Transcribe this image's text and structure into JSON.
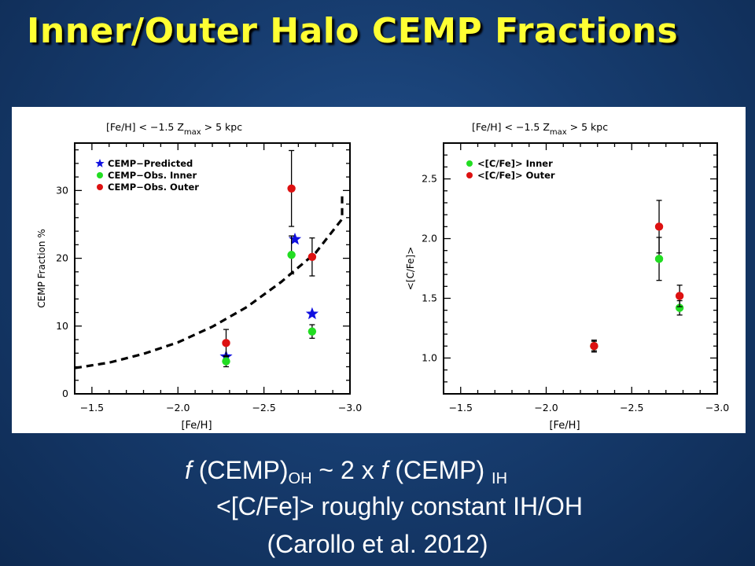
{
  "title": "Inner/Outer Halo CEMP Fractions",
  "caption": {
    "line1": {
      "f1": "f",
      "t1": " (CEMP)",
      "s1": "OH",
      "t2": " ~ 2 x ",
      "f2": "f",
      "t3": " (CEMP) ",
      "s2": "IH"
    },
    "line2": "<[C/Fe]> roughly constant IH/OH",
    "line3": "(Carollo et al. 2012)"
  },
  "colors": {
    "predicted": "#1010e0",
    "inner": "#22dd22",
    "outer": "#dd1111",
    "title": "#ffff33"
  },
  "chart_data": [
    {
      "type": "scatter",
      "header": "[Fe/H] < −1.5 Z_max > 5 kpc",
      "header_parts": {
        "feh": "[Fe/H] < −1.5",
        "z": "Z",
        "zsub": "max",
        "zrest": " > 5 kpc"
      },
      "xlabel": "[Fe/H]",
      "ylabel": "CEMP Fraction %",
      "xlim": [
        -1.4,
        -3.0
      ],
      "ylim": [
        0,
        37
      ],
      "xticks": [
        -1.5,
        -2.0,
        -2.5,
        -3.0
      ],
      "xtick_labels": [
        "−1.5",
        "−2.0",
        "−2.5",
        "−3.0"
      ],
      "yticks": [
        0,
        10,
        20,
        30
      ],
      "ytick_labels": [
        "0",
        "10",
        "20",
        "30"
      ],
      "legend_position": "top-left",
      "series": [
        {
          "name": "CEMP−Predicted",
          "marker": "star",
          "color": "#1010e0",
          "x": [
            -2.28,
            -2.78,
            -2.68
          ],
          "y": [
            5.5,
            11.8,
            22.8
          ],
          "y_alt": true
        },
        {
          "name": "CEMP−Obs. Inner",
          "marker": "circle",
          "color": "#22dd22",
          "x": [
            -2.28,
            -2.78,
            -2.66
          ],
          "y": [
            4.8,
            9.2,
            20.5
          ],
          "err": [
            0.8,
            1.0,
            2.8
          ]
        },
        {
          "name": "CEMP−Obs. Outer",
          "marker": "circle",
          "color": "#dd1111",
          "x": [
            -2.28,
            -2.78,
            -2.66
          ],
          "y": [
            7.5,
            20.2,
            30.3
          ],
          "err": [
            2.0,
            2.8,
            5.6
          ]
        }
      ],
      "curve": {
        "style": "dashed",
        "x": [
          -1.4,
          -1.6,
          -1.8,
          -2.0,
          -2.2,
          -2.4,
          -2.6,
          -2.8,
          -3.0,
          -3.05
        ],
        "y": [
          3.8,
          4.6,
          5.9,
          7.6,
          9.9,
          12.8,
          16.5,
          20.8,
          25.8,
          29.8
        ]
      }
    },
    {
      "type": "scatter",
      "header": "[Fe/H] < −1.5 Z_max > 5 kpc",
      "header_parts": {
        "feh": "[Fe/H] < −1.5",
        "z": "Z",
        "zsub": "max",
        "zrest": " > 5 kpc"
      },
      "xlabel": "[Fe/H]",
      "ylabel": "<[C/Fe]>",
      "xlim": [
        -1.4,
        -3.0
      ],
      "ylim": [
        0.7,
        2.8
      ],
      "xticks": [
        -1.5,
        -2.0,
        -2.5,
        -3.0
      ],
      "xtick_labels": [
        "−1.5",
        "−2.0",
        "−2.5",
        "−3.0"
      ],
      "yticks": [
        1.0,
        1.5,
        2.0,
        2.5
      ],
      "ytick_labels": [
        "1.0",
        "1.5",
        "2.0",
        "2.5"
      ],
      "legend_position": "top-left",
      "series": [
        {
          "name": "<[C/Fe]> Inner",
          "marker": "circle",
          "color": "#22dd22",
          "x": [
            -2.28,
            -2.78,
            -2.66
          ],
          "y": [
            1.1,
            1.42,
            1.83
          ],
          "err": [
            0.04,
            0.06,
            0.18
          ]
        },
        {
          "name": "<[C/Fe]> Outer",
          "marker": "circle",
          "color": "#dd1111",
          "x": [
            -2.28,
            -2.78,
            -2.66
          ],
          "y": [
            1.1,
            1.52,
            2.1
          ],
          "err": [
            0.05,
            0.09,
            0.22
          ]
        }
      ]
    }
  ]
}
